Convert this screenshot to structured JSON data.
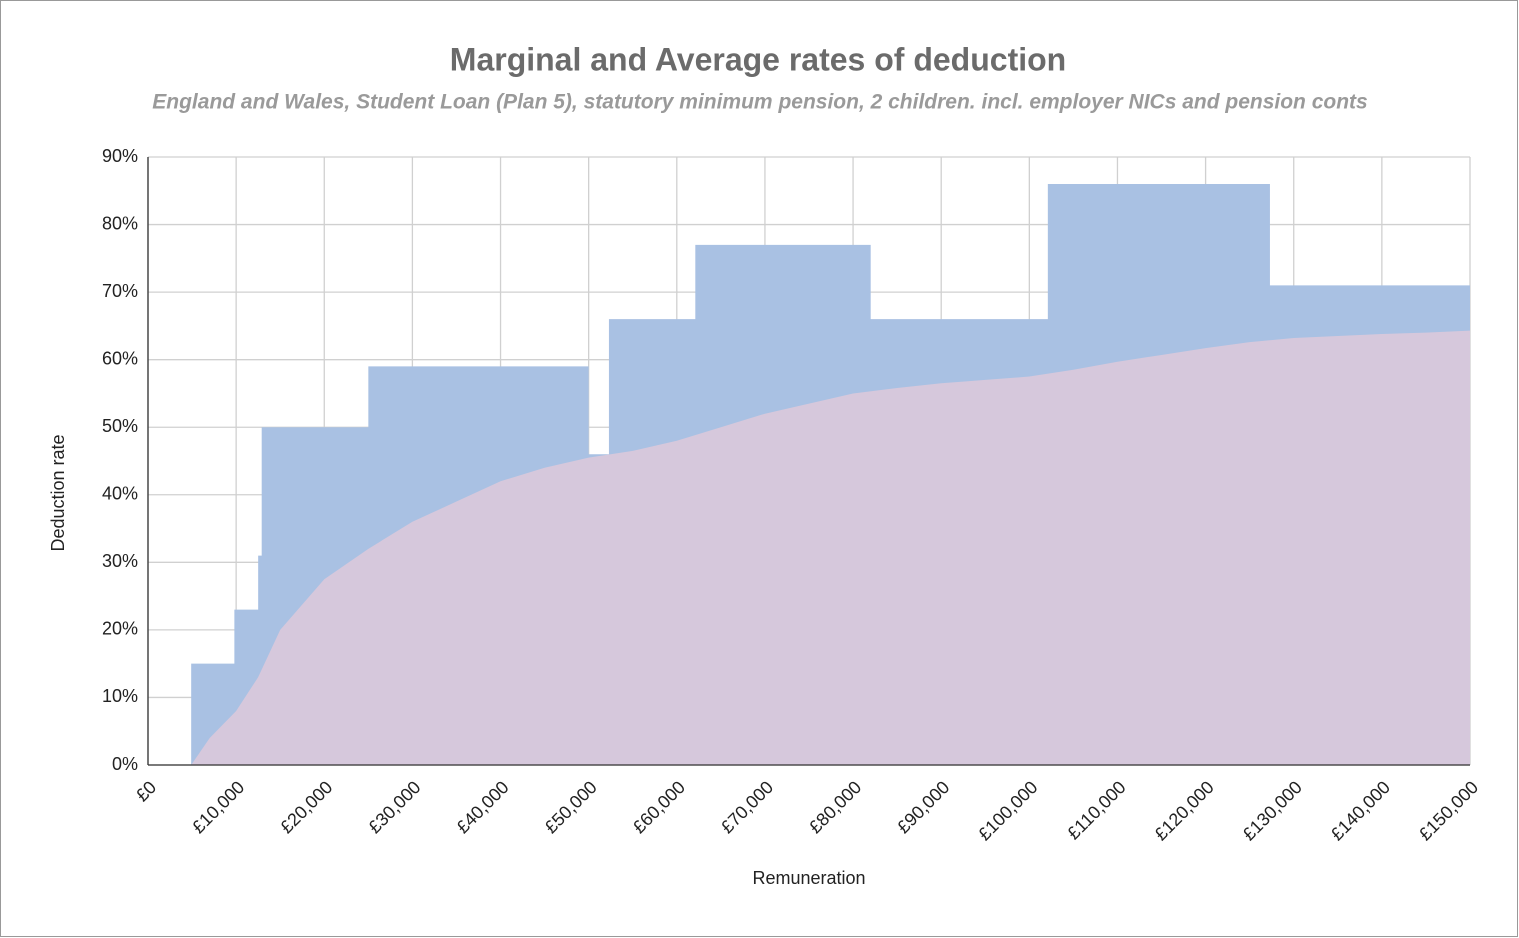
{
  "chart_data": {
    "type": "area",
    "title": "Marginal and Average rates of deduction",
    "subtitle": "England and Wales, Student Loan (Plan 5), statutory minimum pension, 2 children. incl. employer NICs and pension conts",
    "x_label": "Remuneration",
    "y_label": "Deduction rate",
    "xlim": [
      0,
      150000
    ],
    "ylim": [
      0,
      90
    ],
    "xticks": [
      {
        "value": 0,
        "label": "£0"
      },
      {
        "value": 10000,
        "label": "£10,000"
      },
      {
        "value": 20000,
        "label": "£20,000"
      },
      {
        "value": 30000,
        "label": "£30,000"
      },
      {
        "value": 40000,
        "label": "£40,000"
      },
      {
        "value": 50000,
        "label": "£50,000"
      },
      {
        "value": 60000,
        "label": "£60,000"
      },
      {
        "value": 70000,
        "label": "£70,000"
      },
      {
        "value": 80000,
        "label": "£80,000"
      },
      {
        "value": 90000,
        "label": "£90,000"
      },
      {
        "value": 100000,
        "label": "£100,000"
      },
      {
        "value": 110000,
        "label": "£110,000"
      },
      {
        "value": 120000,
        "label": "£120,000"
      },
      {
        "value": 130000,
        "label": "£130,000"
      },
      {
        "value": 140000,
        "label": "£140,000"
      },
      {
        "value": 150000,
        "label": "£150,000"
      }
    ],
    "yticks": [
      {
        "value": 0,
        "label": "0%"
      },
      {
        "value": 10,
        "label": "10%"
      },
      {
        "value": 20,
        "label": "20%"
      },
      {
        "value": 30,
        "label": "30%"
      },
      {
        "value": 40,
        "label": "40%"
      },
      {
        "value": 50,
        "label": "50%"
      },
      {
        "value": 60,
        "label": "60%"
      },
      {
        "value": 70,
        "label": "70%"
      },
      {
        "value": 80,
        "label": "80%"
      },
      {
        "value": 90,
        "label": "90%"
      }
    ],
    "grid": true,
    "series": [
      {
        "color": "#a9c1e3",
        "x": [
          0,
          4900,
          4900,
          9800,
          9800,
          12500,
          12500,
          12900,
          12900,
          25000,
          25000,
          50000,
          50000,
          52300,
          52300,
          62100,
          62100,
          82000,
          82000,
          102100,
          102100,
          127300,
          127300,
          150000
        ],
        "values": [
          0,
          0,
          15,
          15,
          23,
          23,
          31,
          31,
          50,
          50,
          59,
          59,
          46,
          46,
          66,
          66,
          77,
          77,
          66,
          66,
          86,
          86,
          71,
          71
        ]
      },
      {
        "color": "#d6c8dc",
        "x": [
          4900,
          7000,
          10000,
          12500,
          15000,
          20000,
          25000,
          30000,
          35000,
          40000,
          45000,
          50000,
          55000,
          60000,
          65000,
          70000,
          75000,
          80000,
          85000,
          90000,
          95000,
          100000,
          105000,
          110000,
          115000,
          120000,
          125000,
          130000,
          135000,
          140000,
          145000,
          150000
        ],
        "values": [
          0,
          4,
          8,
          13,
          20,
          27.5,
          32,
          36,
          39,
          42,
          44,
          45.5,
          46.5,
          48,
          50,
          52,
          53.5,
          55,
          55.8,
          56.5,
          57,
          57.5,
          58.5,
          59.7,
          60.7,
          61.7,
          62.6,
          63.2,
          63.5,
          63.8,
          64,
          64.3
        ]
      }
    ]
  }
}
